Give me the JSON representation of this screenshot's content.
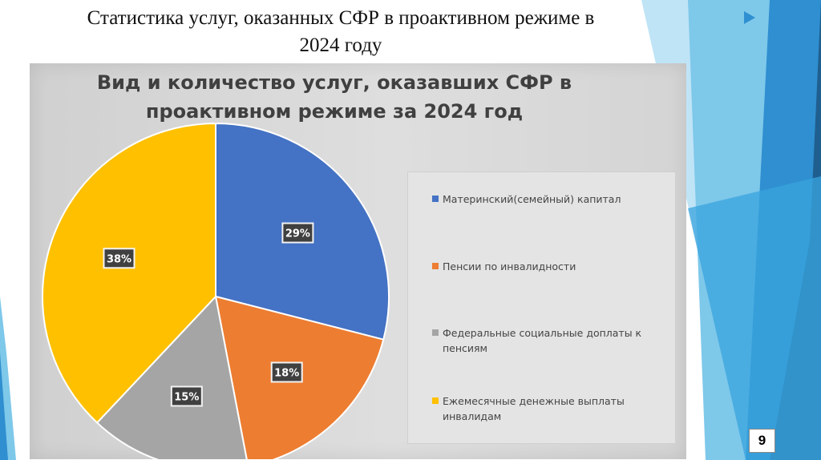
{
  "slide": {
    "title_line1": "Статистика услуг, оказанных СФР в проактивном режиме в",
    "title_line2": "2024 году",
    "page_number": "9"
  },
  "colors": {
    "accent_dark": "#1f5f8f",
    "accent_mid": "#2f8fd0",
    "accent_light": "#7ec8ea",
    "accent_lighter": "#bfe4f6"
  },
  "chart_data": {
    "type": "pie",
    "title_line1": "Вид и количество услуг, оказавших СФР в",
    "title_line2": "проактивном режиме за 2024 год",
    "legend_position": "right",
    "slices": [
      {
        "label": "Материнский(семейный) капитал",
        "value": 29,
        "value_label": "29%",
        "color": "#4472c4"
      },
      {
        "label": "Пенсии по инвалидности",
        "value": 18,
        "value_label": "18%",
        "color": "#ed7d31"
      },
      {
        "label": "Федеральные социальные доплаты к пенсиям",
        "value": 15,
        "value_label": "15%",
        "color": "#a5a5a5"
      },
      {
        "label": "Ежемесячные денежные выплаты инвалидам",
        "value": 38,
        "value_label": "38%",
        "color": "#ffc000"
      }
    ]
  }
}
